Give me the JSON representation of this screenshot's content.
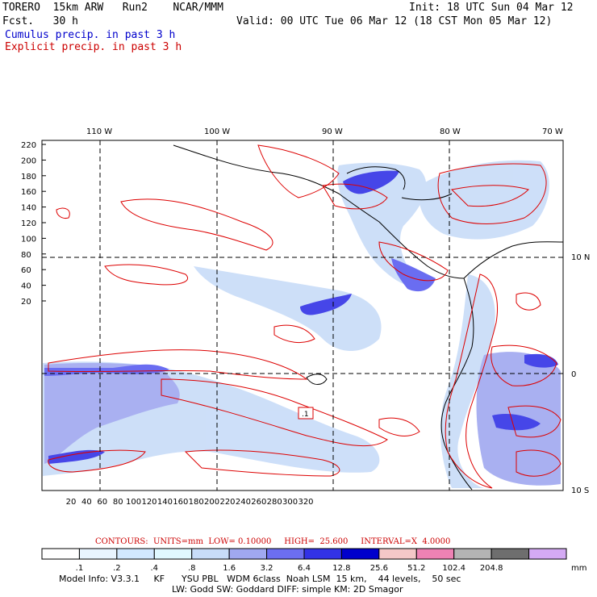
{
  "header": {
    "model": "TORERO  15km ARW   Run2    NCAR/MMM",
    "init": "Init: 18 UTC Sun 04 Mar 12",
    "fcst": "Fcst.   30 h",
    "valid": "Valid: 00 UTC Tue 06 Mar 12 (18 CST Mon 05 Mar 12)",
    "legend_cumulus": "Cumulus precip. in past 3 h",
    "legend_explicit": "Explicit precip. in past 3 h"
  },
  "map": {
    "top_lon_labels": [
      "110 W",
      "100 W",
      "90 W",
      "80 W",
      "70 W"
    ],
    "right_lat_labels": [
      "10 N",
      "0",
      "10 S"
    ],
    "left_ticks": [
      "220",
      "200",
      "180",
      "160",
      "140",
      "120",
      "100",
      "80",
      "60",
      "40",
      "20"
    ],
    "bottom_ticks": [
      "20",
      "40",
      "60",
      "80",
      "100",
      "120",
      "140",
      "160",
      "180",
      "200",
      "220",
      "240",
      "260",
      "280",
      "300",
      "320"
    ],
    "box_label": ".1",
    "colors": {
      "cumulus": "#3333dd",
      "explicit": "#dd0000",
      "coast": "#000000"
    }
  },
  "footer": {
    "contours": "CONTOURS:  UNITS=mm  LOW= 0.10000     HIGH=  25.600     INTERVAL=X  4.0000",
    "scale_labels": [
      ".1",
      ".2",
      ".4",
      ".8",
      "1.6",
      "3.2",
      "6.4",
      "12.8",
      "25.6",
      "51.2",
      "102.4",
      "204.8"
    ],
    "scale_unit": "mm",
    "scale_colors": [
      "#ffffff",
      "#e8f4ff",
      "#d2e8ff",
      "#e0f8ff",
      "#c8dcf8",
      "#a0a8f0",
      "#6c6ef0",
      "#3232e6",
      "#0000cc",
      "#f4c8c8",
      "#ee82b4",
      "#b4b4b4",
      "#6e6e6e",
      "#d4aaf4"
    ],
    "model_info": "Model Info: V3.3.1     KF      YSU PBL   WDM 6class  Noah LSM  15 km,    44 levels,    50 sec",
    "model_info2": "LW: Godd SW: Goddard DIFF: simple KM: 2D Smagor"
  }
}
